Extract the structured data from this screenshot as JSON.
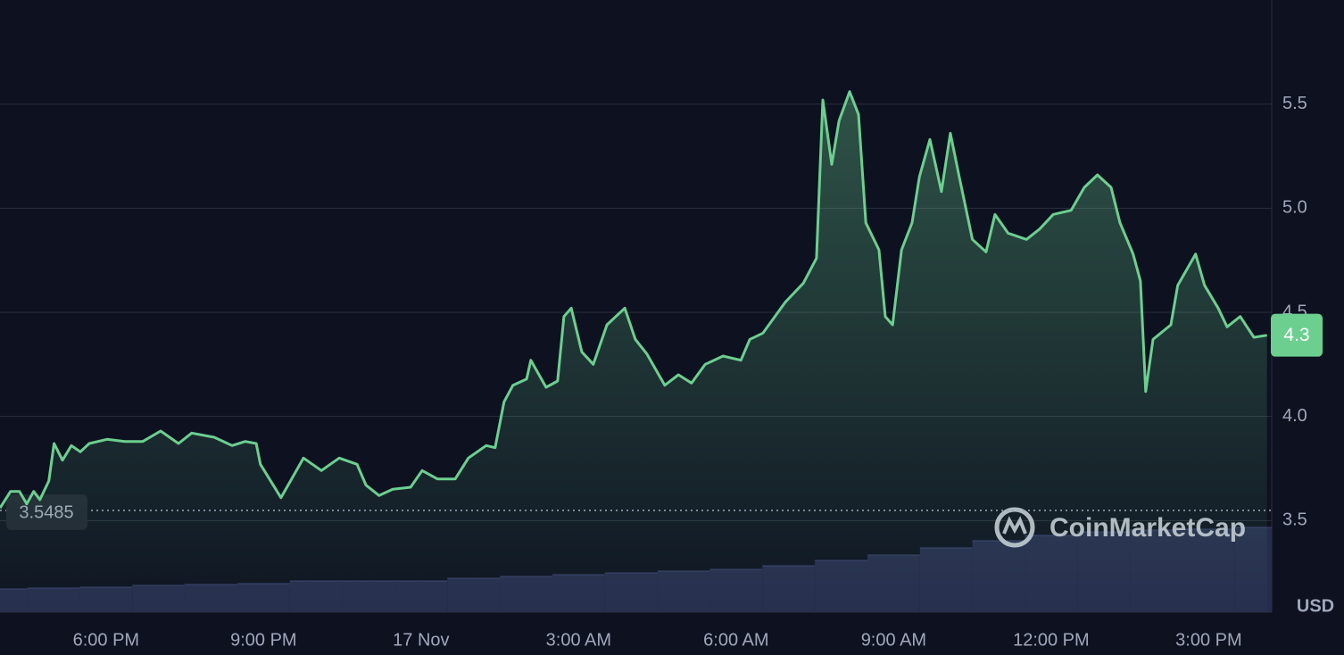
{
  "chart_data": {
    "type": "line",
    "color": "#6ccf8f",
    "grid": true,
    "x": [
      -2.02,
      -1.82,
      -1.65,
      -1.51,
      -1.38,
      -1.26,
      -1.09,
      -0.99,
      -0.83,
      -0.66,
      -0.49,
      -0.32,
      0.02,
      0.36,
      0.7,
      1.04,
      1.38,
      1.63,
      2.06,
      2.4,
      2.65,
      2.86,
      2.94,
      3.33,
      3.76,
      4.1,
      4.44,
      4.78,
      4.95,
      5.2,
      5.46,
      5.8,
      6.02,
      6.31,
      6.65,
      6.9,
      7.24,
      7.41,
      7.58,
      7.75,
      8.01,
      8.09,
      8.38,
      8.6,
      8.72,
      8.86,
      9.06,
      9.28,
      9.54,
      9.88,
      10.08,
      10.3,
      10.64,
      10.9,
      11.15,
      11.41,
      11.75,
      12.09,
      12.26,
      12.51,
      12.94,
      13.28,
      13.53,
      13.65,
      13.82,
      13.96,
      14.16,
      14.33,
      14.47,
      14.72,
      14.84,
      14.98,
      15.15,
      15.35,
      15.49,
      15.69,
      15.91,
      16.08,
      16.25,
      16.5,
      16.76,
      16.93,
      17.18,
      17.53,
      17.78,
      18.04,
      18.38,
      18.63,
      18.88,
      19.14,
      19.31,
      19.56,
      19.7,
      19.8,
      19.94,
      20.28,
      20.41,
      20.75,
      20.92,
      21.18,
      21.35,
      21.6,
      21.86,
      22.11
    ],
    "values": [
      3.56,
      3.64,
      3.64,
      3.58,
      3.64,
      3.6,
      3.69,
      3.87,
      3.79,
      3.86,
      3.83,
      3.87,
      3.89,
      3.88,
      3.88,
      3.93,
      3.87,
      3.92,
      3.9,
      3.86,
      3.88,
      3.87,
      3.77,
      3.61,
      3.8,
      3.74,
      3.8,
      3.77,
      3.67,
      3.62,
      3.65,
      3.66,
      3.74,
      3.7,
      3.7,
      3.8,
      3.86,
      3.85,
      4.07,
      4.15,
      4.18,
      4.27,
      4.14,
      4.17,
      4.48,
      4.52,
      4.31,
      4.25,
      4.44,
      4.52,
      4.37,
      4.3,
      4.15,
      4.2,
      4.16,
      4.25,
      4.29,
      4.27,
      4.37,
      4.4,
      4.55,
      4.64,
      4.76,
      5.52,
      5.21,
      5.42,
      5.56,
      5.45,
      4.93,
      4.8,
      4.48,
      4.44,
      4.8,
      4.93,
      5.15,
      5.33,
      5.08,
      5.36,
      5.15,
      4.85,
      4.79,
      4.97,
      4.88,
      4.85,
      4.9,
      4.97,
      4.99,
      5.1,
      5.16,
      5.1,
      4.93,
      4.78,
      4.65,
      4.12,
      4.37,
      4.44,
      4.63,
      4.78,
      4.63,
      4.52,
      4.43,
      4.48,
      4.38,
      4.39
    ],
    "xlim": [
      -2.02,
      22.2
    ],
    "ylim": [
      3.06,
      6.0
    ],
    "xticks": [
      {
        "value": 0,
        "label": "6:00 PM"
      },
      {
        "value": 3,
        "label": "9:00 PM"
      },
      {
        "value": 6,
        "label": "17 Nov"
      },
      {
        "value": 9,
        "label": "3:00 AM"
      },
      {
        "value": 12,
        "label": "6:00 AM"
      },
      {
        "value": 15,
        "label": "9:00 AM"
      },
      {
        "value": 18,
        "label": "12:00 PM"
      },
      {
        "value": 21,
        "label": "3:00 PM"
      }
    ],
    "yticks": [
      3.5,
      {
        "value": 4,
        "label": "4.0"
      },
      4.5,
      {
        "value": 5,
        "label": "5.0"
      },
      5.5
    ],
    "reference_line": 3.5485,
    "current_price_label": "4.3",
    "currency": "USD",
    "watermark": "CoinMarketCap",
    "volume": {
      "color": "#262c4d",
      "x": [
        -2,
        -1,
        0,
        1,
        2,
        3,
        4,
        5,
        6,
        7,
        8,
        9,
        10,
        11,
        12,
        13,
        14,
        15,
        16,
        17,
        18,
        19,
        20,
        21,
        22
      ],
      "values": [
        26,
        27,
        28,
        30,
        31,
        32,
        35,
        35,
        35,
        38,
        40,
        42,
        44,
        46,
        48,
        52,
        58,
        64,
        72,
        80,
        86,
        90,
        92,
        93,
        95
      ]
    }
  }
}
